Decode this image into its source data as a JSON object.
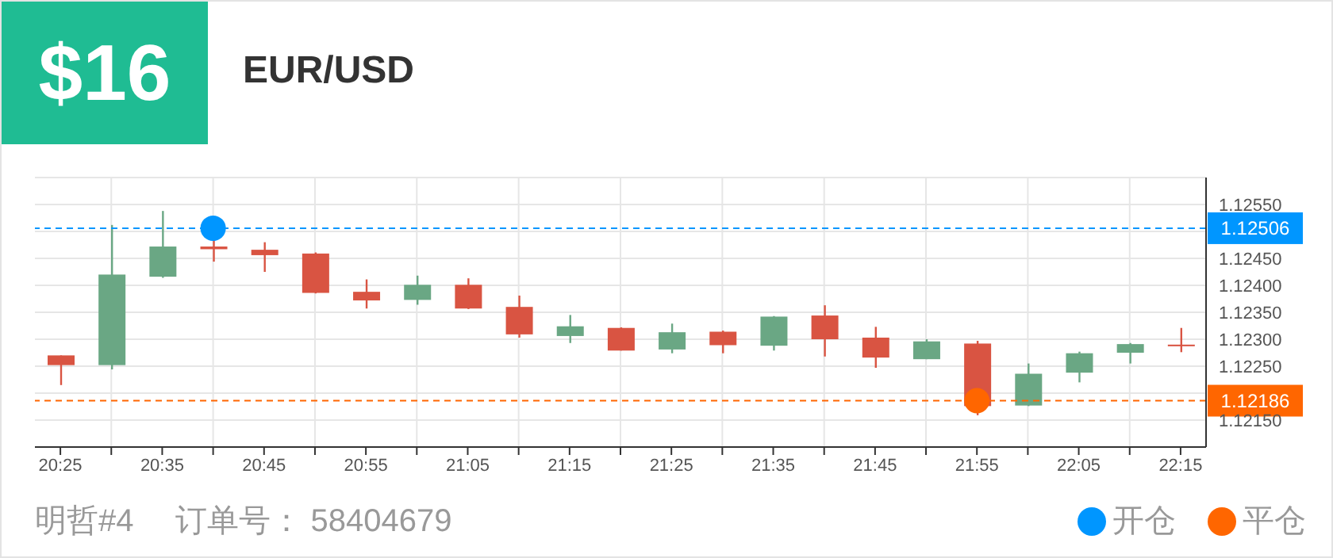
{
  "chart_data": {
    "type": "candlestick",
    "title": "EUR/USD",
    "annotations": [
      "$16",
      "明哲#4",
      "订单号： 58404679"
    ],
    "x": [
      20.41667,
      20.5,
      20.58333,
      20.66667,
      20.75,
      20.83333,
      20.91667,
      21,
      21.08333,
      21.16667,
      21.25,
      21.33333,
      21.41667,
      21.5,
      21.58333,
      21.66667,
      21.75,
      21.83333,
      21.91667,
      22,
      22.08333,
      22.16667,
      22.25
    ],
    "ohlc": [
      [
        1.1227,
        1.1227,
        1.12215,
        1.12252
      ],
      [
        1.12252,
        1.12512,
        1.12244,
        1.1242
      ],
      [
        1.12416,
        1.12538,
        1.12414,
        1.12472
      ],
      [
        1.12472,
        1.12486,
        1.12444,
        1.12467
      ],
      [
        1.12466,
        1.1248,
        1.12425,
        1.12456
      ],
      [
        1.12459,
        1.12461,
        1.12385,
        1.12386
      ],
      [
        1.12388,
        1.12411,
        1.12357,
        1.12372
      ],
      [
        1.12373,
        1.12418,
        1.12364,
        1.12401
      ],
      [
        1.12401,
        1.12413,
        1.12356,
        1.12357
      ],
      [
        1.1236,
        1.12381,
        1.12303,
        1.12309
      ],
      [
        1.12306,
        1.12345,
        1.12293,
        1.12324
      ],
      [
        1.12321,
        1.12322,
        1.12279,
        1.12279
      ],
      [
        1.12281,
        1.12329,
        1.12274,
        1.12313
      ],
      [
        1.12314,
        1.12316,
        1.12274,
        1.12289
      ],
      [
        1.12288,
        1.12343,
        1.12279,
        1.12342
      ],
      [
        1.12344,
        1.12363,
        1.12268,
        1.123
      ],
      [
        1.12303,
        1.12323,
        1.12247,
        1.12266
      ],
      [
        1.12263,
        1.123,
        1.12263,
        1.12296
      ],
      [
        1.12292,
        1.12297,
        1.12159,
        1.12176
      ],
      [
        1.12177,
        1.12255,
        1.12176,
        1.12236
      ],
      [
        1.12238,
        1.12277,
        1.1222,
        1.12274
      ],
      [
        1.12275,
        1.12293,
        1.12255,
        1.12291
      ],
      [
        1.1229,
        1.12321,
        1.12276,
        1.12287
      ]
    ],
    "colors": [
      "#d95442",
      "#6aa784",
      "#6aa784",
      "#d95442",
      "#d95442",
      "#d95442",
      "#d95442",
      "#6aa784",
      "#d95442",
      "#d95442",
      "#6aa784",
      "#d95442",
      "#6aa784",
      "#d95442",
      "#6aa784",
      "#d95442",
      "#d95442",
      "#6aa784",
      "#d95442",
      "#6aa784",
      "#6aa784",
      "#6aa784",
      "#d95442"
    ],
    "series": [
      {
        "type": "scatter",
        "name": "开仓",
        "color": "#0096ff",
        "x": [
          20.66667
        ],
        "values": [
          1.12506
        ]
      },
      {
        "type": "scatter",
        "name": "平仓",
        "color": "#ff6600",
        "x": [
          21.91667
        ],
        "values": [
          1.12186
        ]
      }
    ],
    "ref_lines": [
      {
        "axis": "y",
        "value": 1.12506,
        "label": "1.12506",
        "color": "#0096ff",
        "line_style": "dashed"
      },
      {
        "axis": "y",
        "value": 1.12186,
        "label": "1.12186",
        "color": "#ff6600",
        "line_style": "dashed"
      }
    ],
    "xlim": [
      20.375,
      22.29167
    ],
    "xticks": [
      {
        "value": 20.41667,
        "label": "20:25"
      },
      {
        "value": 20.5,
        "label": null
      },
      {
        "value": 20.58333,
        "label": "20:35"
      },
      {
        "value": 20.66667,
        "label": null
      },
      {
        "value": 20.75,
        "label": "20:45"
      },
      {
        "value": 20.83333,
        "label": null
      },
      {
        "value": 20.91667,
        "label": "20:55"
      },
      {
        "value": 21,
        "label": null
      },
      {
        "value": 21.08333,
        "label": "21:05"
      },
      {
        "value": 21.16667,
        "label": null
      },
      {
        "value": 21.25,
        "label": "21:15"
      },
      {
        "value": 21.33333,
        "label": null
      },
      {
        "value": 21.41667,
        "label": "21:25"
      },
      {
        "value": 21.5,
        "label": null
      },
      {
        "value": 21.58333,
        "label": "21:35"
      },
      {
        "value": 21.66667,
        "label": null
      },
      {
        "value": 21.75,
        "label": "21:45"
      },
      {
        "value": 21.83333,
        "label": null
      },
      {
        "value": 21.91667,
        "label": "21:55"
      },
      {
        "value": 22,
        "label": null
      },
      {
        "value": 22.08333,
        "label": "22:05"
      },
      {
        "value": 22.16667,
        "label": null
      },
      {
        "value": 22.25,
        "label": "22:15"
      }
    ],
    "ylim": [
      1.121,
      1.126
    ],
    "yticks": [
      {
        "value": 1.1215,
        "label": "1.12150"
      },
      {
        "value": 1.122,
        "label": null
      },
      {
        "value": 1.1225,
        "label": "1.12250"
      },
      {
        "value": 1.123,
        "label": "1.12300"
      },
      {
        "value": 1.1235,
        "label": "1.12350"
      },
      {
        "value": 1.124,
        "label": "1.12400"
      },
      {
        "value": 1.1245,
        "label": "1.12450"
      },
      {
        "value": 1.125,
        "label": null
      },
      {
        "value": 1.1255,
        "label": "1.12550"
      }
    ],
    "grid": true,
    "legend": "bottom right",
    "marker": "circle"
  }
}
